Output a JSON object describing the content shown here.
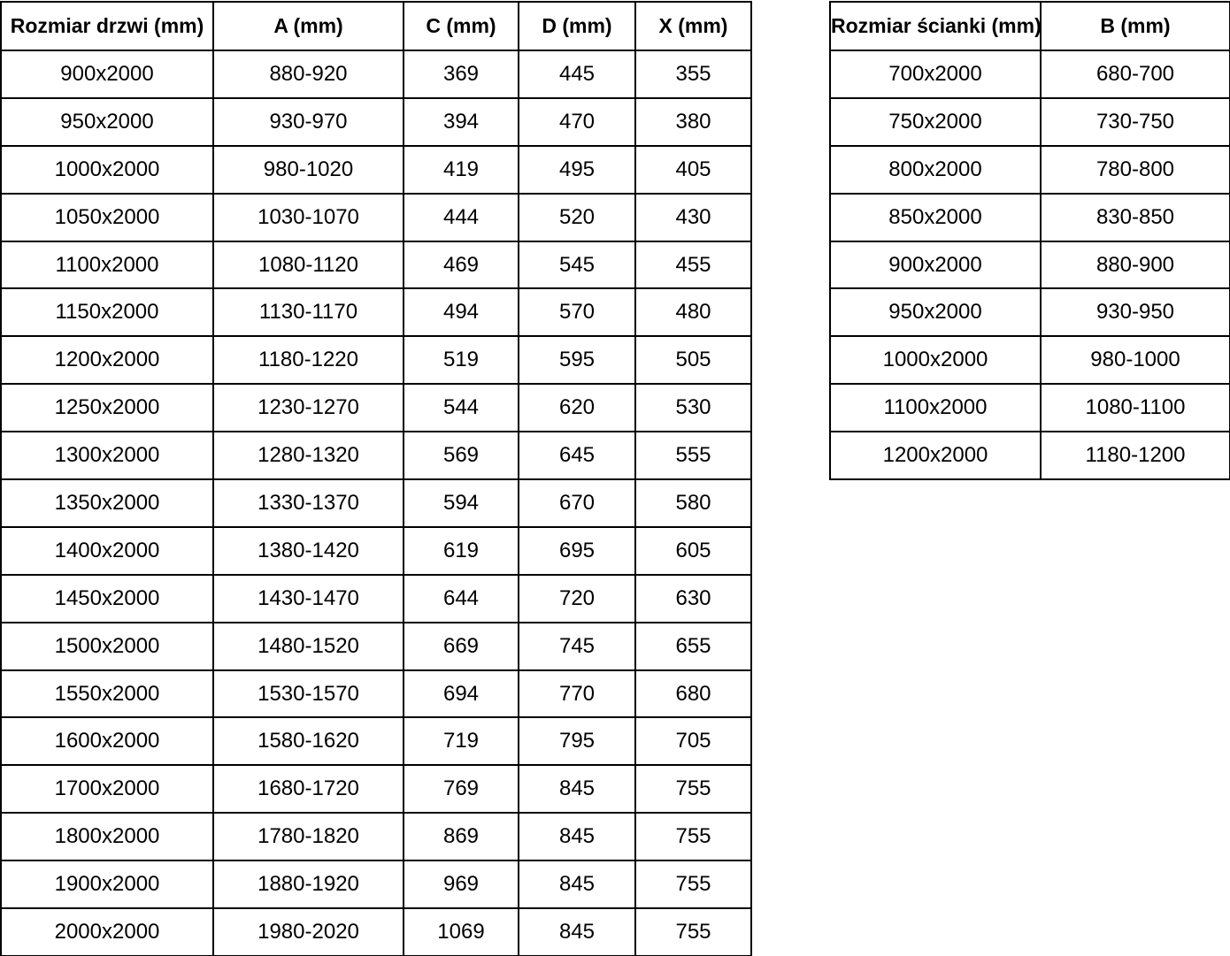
{
  "page": {
    "background_color": "#ffffff",
    "text_color": "#000000",
    "border_color": "#000000"
  },
  "tables": [
    {
      "name": "door-sizes-table",
      "columns": [
        "Rozmiar drzwi (mm)",
        "A (mm)",
        "C (mm)",
        "D (mm)",
        "X (mm)"
      ],
      "rows": [
        [
          "900x2000",
          "880-920",
          "369",
          "445",
          "355"
        ],
        [
          "950x2000",
          "930-970",
          "394",
          "470",
          "380"
        ],
        [
          "1000x2000",
          "980-1020",
          "419",
          "495",
          "405"
        ],
        [
          "1050x2000",
          "1030-1070",
          "444",
          "520",
          "430"
        ],
        [
          "1100x2000",
          "1080-1120",
          "469",
          "545",
          "455"
        ],
        [
          "1150x2000",
          "1130-1170",
          "494",
          "570",
          "480"
        ],
        [
          "1200x2000",
          "1180-1220",
          "519",
          "595",
          "505"
        ],
        [
          "1250x2000",
          "1230-1270",
          "544",
          "620",
          "530"
        ],
        [
          "1300x2000",
          "1280-1320",
          "569",
          "645",
          "555"
        ],
        [
          "1350x2000",
          "1330-1370",
          "594",
          "670",
          "580"
        ],
        [
          "1400x2000",
          "1380-1420",
          "619",
          "695",
          "605"
        ],
        [
          "1450x2000",
          "1430-1470",
          "644",
          "720",
          "630"
        ],
        [
          "1500x2000",
          "1480-1520",
          "669",
          "745",
          "655"
        ],
        [
          "1550x2000",
          "1530-1570",
          "694",
          "770",
          "680"
        ],
        [
          "1600x2000",
          "1580-1620",
          "719",
          "795",
          "705"
        ],
        [
          "1700x2000",
          "1680-1720",
          "769",
          "845",
          "755"
        ],
        [
          "1800x2000",
          "1780-1820",
          "869",
          "845",
          "755"
        ],
        [
          "1900x2000",
          "1880-1920",
          "969",
          "845",
          "755"
        ],
        [
          "2000x2000",
          "1980-2020",
          "1069",
          "845",
          "755"
        ]
      ]
    },
    {
      "name": "wall-sizes-table",
      "columns": [
        "Rozmiar ścianki (mm)",
        "B (mm)"
      ],
      "rows": [
        [
          "700x2000",
          "680-700"
        ],
        [
          "750x2000",
          "730-750"
        ],
        [
          "800x2000",
          "780-800"
        ],
        [
          "850x2000",
          "830-850"
        ],
        [
          "900x2000",
          "880-900"
        ],
        [
          "950x2000",
          "930-950"
        ],
        [
          "1000x2000",
          "980-1000"
        ],
        [
          "1100x2000",
          "1080-1100"
        ],
        [
          "1200x2000",
          "1180-1200"
        ]
      ]
    }
  ],
  "chart_data": [
    {
      "type": "table",
      "title": "Rozmiar drzwi (mm)",
      "columns": [
        "Rozmiar drzwi (mm)",
        "A (mm)",
        "C (mm)",
        "D (mm)",
        "X (mm)"
      ],
      "rows": [
        [
          "900x2000",
          "880-920",
          "369",
          "445",
          "355"
        ],
        [
          "950x2000",
          "930-970",
          "394",
          "470",
          "380"
        ],
        [
          "1000x2000",
          "980-1020",
          "419",
          "495",
          "405"
        ],
        [
          "1050x2000",
          "1030-1070",
          "444",
          "520",
          "430"
        ],
        [
          "1100x2000",
          "1080-1120",
          "469",
          "545",
          "455"
        ],
        [
          "1150x2000",
          "1130-1170",
          "494",
          "570",
          "480"
        ],
        [
          "1200x2000",
          "1180-1220",
          "519",
          "595",
          "505"
        ],
        [
          "1250x2000",
          "1230-1270",
          "544",
          "620",
          "530"
        ],
        [
          "1300x2000",
          "1280-1320",
          "569",
          "645",
          "555"
        ],
        [
          "1350x2000",
          "1330-1370",
          "594",
          "670",
          "580"
        ],
        [
          "1400x2000",
          "1380-1420",
          "619",
          "695",
          "605"
        ],
        [
          "1450x2000",
          "1430-1470",
          "644",
          "720",
          "630"
        ],
        [
          "1500x2000",
          "1480-1520",
          "669",
          "745",
          "655"
        ],
        [
          "1550x2000",
          "1530-1570",
          "694",
          "770",
          "680"
        ],
        [
          "1600x2000",
          "1580-1620",
          "719",
          "795",
          "705"
        ],
        [
          "1700x2000",
          "1680-1720",
          "769",
          "845",
          "755"
        ],
        [
          "1800x2000",
          "1780-1820",
          "869",
          "845",
          "755"
        ],
        [
          "1900x2000",
          "1880-1920",
          "969",
          "845",
          "755"
        ],
        [
          "2000x2000",
          "1980-2020",
          "1069",
          "845",
          "755"
        ]
      ]
    },
    {
      "type": "table",
      "title": "Rozmiar ścianki (mm)",
      "columns": [
        "Rozmiar ścianki (mm)",
        "B (mm)"
      ],
      "rows": [
        [
          "700x2000",
          "680-700"
        ],
        [
          "750x2000",
          "730-750"
        ],
        [
          "800x2000",
          "780-800"
        ],
        [
          "850x2000",
          "830-850"
        ],
        [
          "900x2000",
          "880-900"
        ],
        [
          "950x2000",
          "930-950"
        ],
        [
          "1000x2000",
          "980-1000"
        ],
        [
          "1100x2000",
          "1080-1100"
        ],
        [
          "1200x2000",
          "1180-1200"
        ]
      ]
    }
  ]
}
